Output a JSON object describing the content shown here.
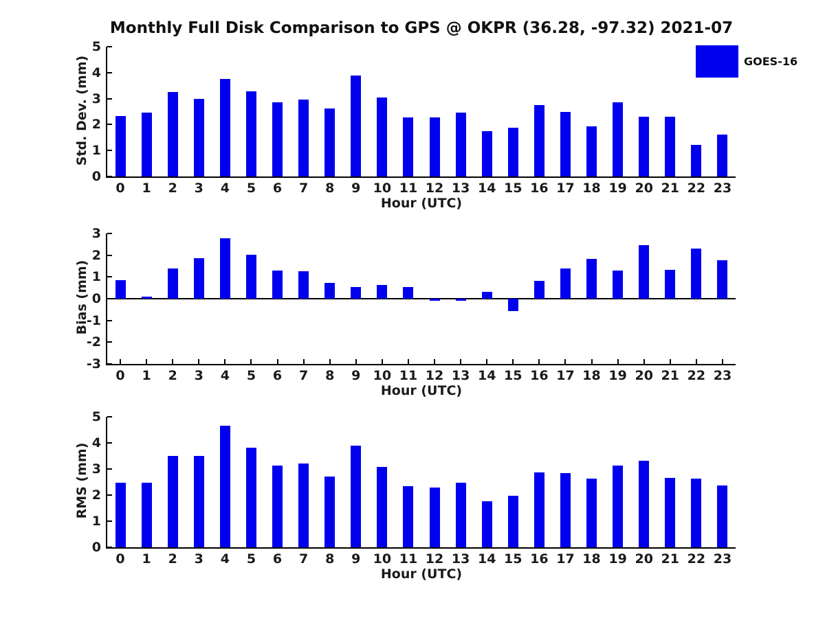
{
  "title": "Monthly Full Disk Comparison to GPS @ OKPR (36.28, -97.32) 2021-07",
  "legend": {
    "label": "GOES-16",
    "color": "#0000ee",
    "position": "top-right"
  },
  "colors": {
    "bar": "#0000ee",
    "axis": "#000000",
    "text": "#1a1a1a"
  },
  "chart_data": [
    {
      "type": "bar",
      "name": "std-dev",
      "ylabel": "Std. Dev. (mm)",
      "xlabel": "Hour (UTC)",
      "ylim": [
        0,
        5
      ],
      "yticks": [
        0,
        1,
        2,
        3,
        4,
        5
      ],
      "grid": false,
      "categories": [
        "0",
        "1",
        "2",
        "3",
        "4",
        "5",
        "6",
        "7",
        "8",
        "9",
        "10",
        "11",
        "12",
        "13",
        "14",
        "15",
        "16",
        "17",
        "18",
        "19",
        "20",
        "21",
        "22",
        "23"
      ],
      "series": [
        {
          "name": "GOES-16",
          "values": [
            2.32,
            2.45,
            3.25,
            2.98,
            3.75,
            3.27,
            2.87,
            2.97,
            2.63,
            3.88,
            3.03,
            2.27,
            2.27,
            2.46,
            1.74,
            1.87,
            2.76,
            2.48,
            1.93,
            2.86,
            2.29,
            2.31,
            1.22,
            1.62
          ]
        }
      ]
    },
    {
      "type": "bar",
      "name": "bias",
      "ylabel": "Bias (mm)",
      "xlabel": "Hour (UTC)",
      "ylim": [
        -3,
        3
      ],
      "yticks": [
        -3,
        -2,
        -1,
        0,
        1,
        2,
        3
      ],
      "grid": false,
      "zero_line": true,
      "categories": [
        "0",
        "1",
        "2",
        "3",
        "4",
        "5",
        "6",
        "7",
        "8",
        "9",
        "10",
        "11",
        "12",
        "13",
        "14",
        "15",
        "16",
        "17",
        "18",
        "19",
        "20",
        "21",
        "22",
        "23"
      ],
      "series": [
        {
          "name": "GOES-16",
          "values": [
            0.85,
            0.08,
            1.38,
            1.85,
            2.77,
            2.02,
            1.28,
            1.25,
            0.73,
            0.55,
            0.63,
            0.55,
            -0.08,
            -0.1,
            0.33,
            -0.57,
            0.82,
            1.38,
            1.82,
            1.28,
            2.45,
            1.32,
            2.32,
            1.77
          ]
        }
      ]
    },
    {
      "type": "bar",
      "name": "rms",
      "ylabel": "RMS (mm)",
      "xlabel": "Hour (UTC)",
      "ylim": [
        0,
        5
      ],
      "yticks": [
        0,
        1,
        2,
        3,
        4,
        5
      ],
      "grid": false,
      "categories": [
        "0",
        "1",
        "2",
        "3",
        "4",
        "5",
        "6",
        "7",
        "8",
        "9",
        "10",
        "11",
        "12",
        "13",
        "14",
        "15",
        "16",
        "17",
        "18",
        "19",
        "20",
        "21",
        "22",
        "23"
      ],
      "series": [
        {
          "name": "GOES-16",
          "values": [
            2.47,
            2.47,
            3.5,
            3.5,
            4.65,
            3.82,
            3.14,
            3.22,
            2.72,
            3.9,
            3.08,
            2.34,
            2.28,
            2.47,
            1.76,
            1.97,
            2.87,
            2.84,
            2.64,
            3.13,
            3.31,
            2.67,
            2.62,
            2.38
          ]
        }
      ]
    }
  ]
}
